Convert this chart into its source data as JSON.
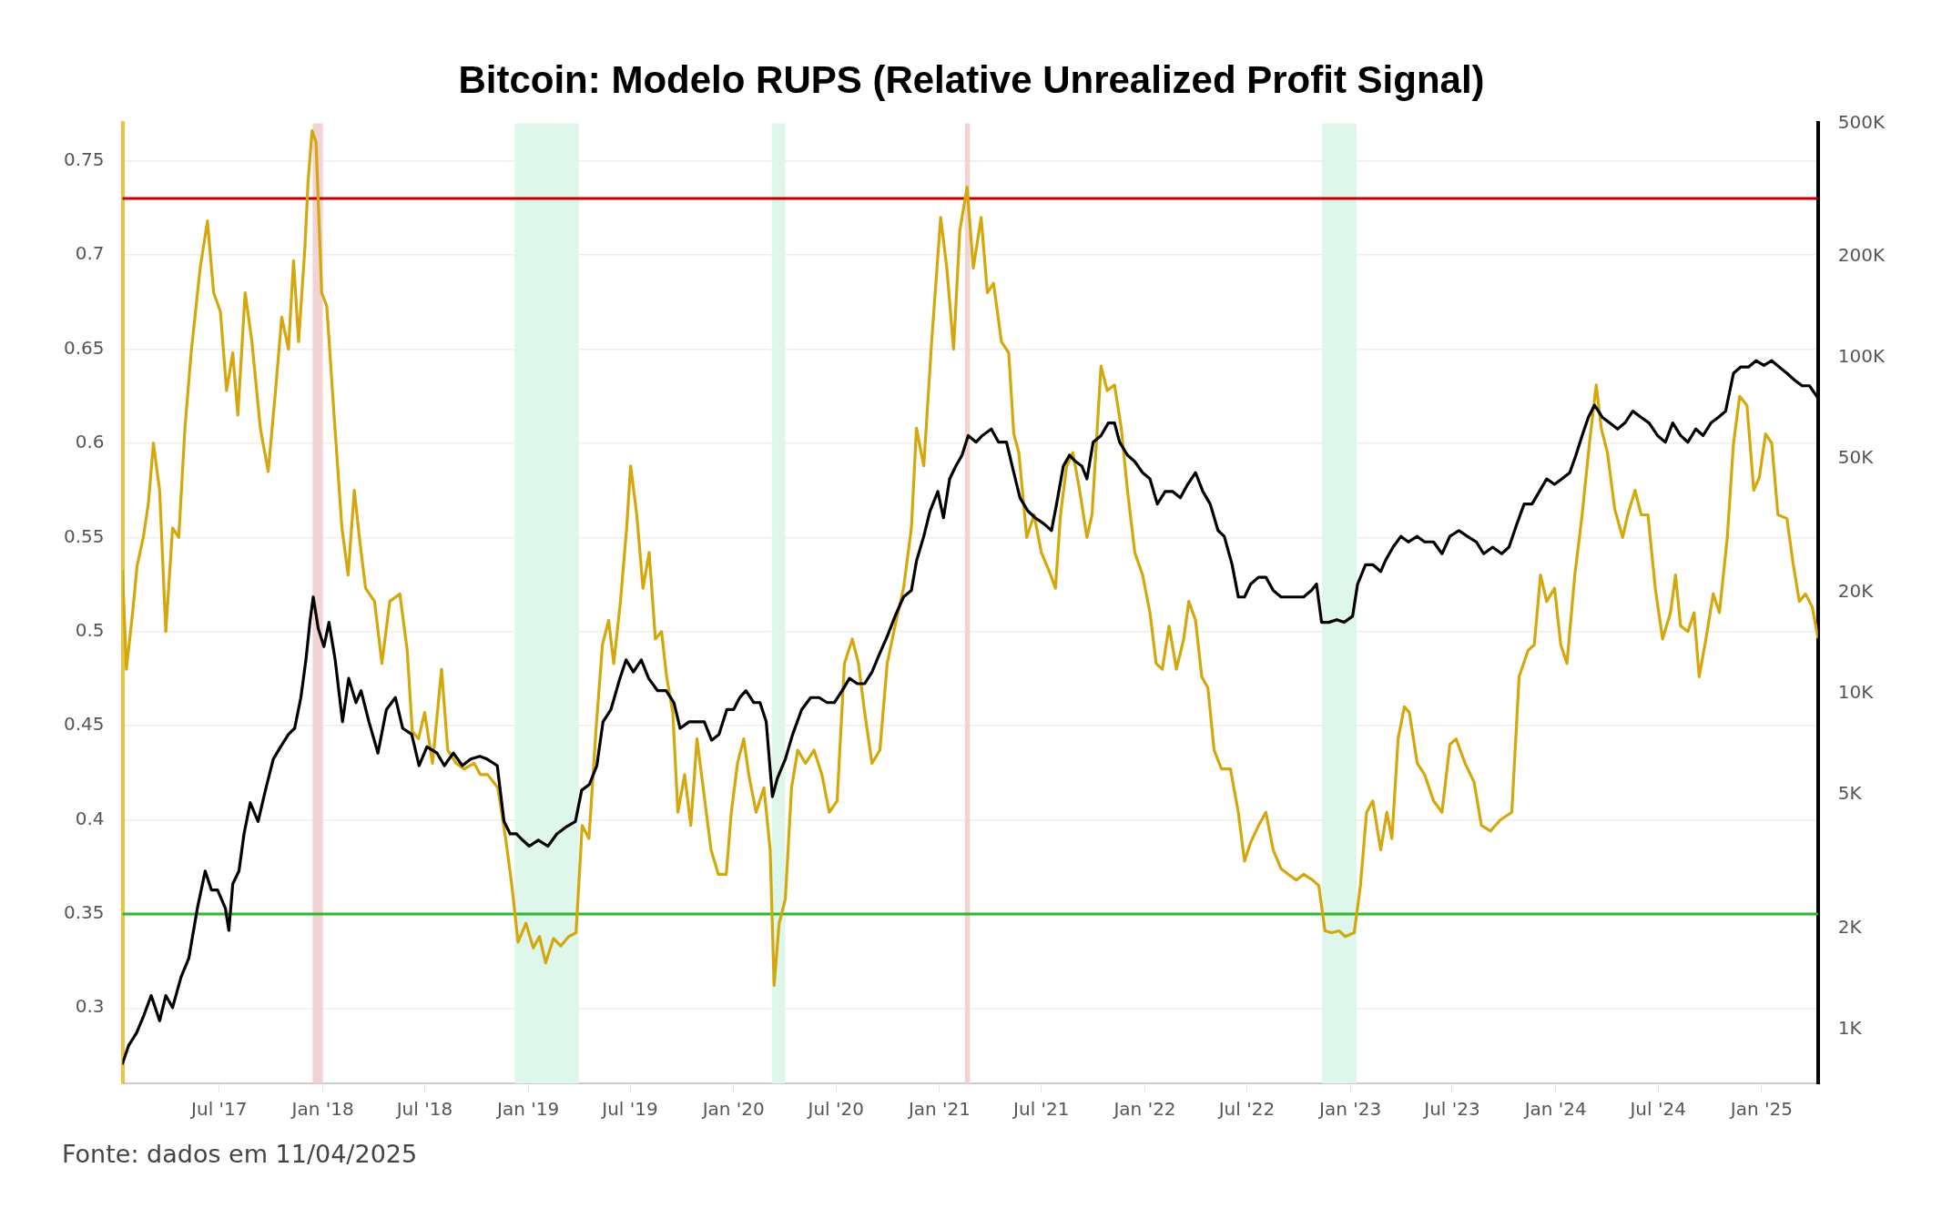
{
  "chart_data": {
    "type": "line",
    "title": "Bitcoin: Modelo RUPS (Relative Unrealized Profit Signal)",
    "annotations": [
      "Fonte: dados em 11/04/2025"
    ],
    "xlim": [
      "2017-01-10",
      "2025-04-11"
    ],
    "xticks": [
      {
        "value": "2017-07-01",
        "label": "Jul '17"
      },
      {
        "value": "2018-01-01",
        "label": "Jan '18"
      },
      {
        "value": "2018-07-01",
        "label": "Jul '18"
      },
      {
        "value": "2019-01-01",
        "label": "Jan '19"
      },
      {
        "value": "2019-07-01",
        "label": "Jul '19"
      },
      {
        "value": "2020-01-01",
        "label": "Jan '20"
      },
      {
        "value": "2020-07-01",
        "label": "Jul '20"
      },
      {
        "value": "2021-01-01",
        "label": "Jan '21"
      },
      {
        "value": "2021-07-01",
        "label": "Jul '21"
      },
      {
        "value": "2022-01-01",
        "label": "Jan '22"
      },
      {
        "value": "2022-07-01",
        "label": "Jul '22"
      },
      {
        "value": "2023-01-01",
        "label": "Jan '23"
      },
      {
        "value": "2023-07-01",
        "label": "Jul '23"
      },
      {
        "value": "2024-01-01",
        "label": "Jan '24"
      },
      {
        "value": "2024-07-01",
        "label": "Jul '24"
      },
      {
        "value": "2025-01-01",
        "label": "Jan '25"
      }
    ],
    "ylim": [
      0.26,
      0.77
    ],
    "yticks": [
      0.3,
      0.35,
      0.4,
      0.45,
      0.5,
      0.55,
      0.6,
      0.65,
      0.7,
      0.75
    ],
    "y2lim": [
      690,
      500000
    ],
    "y2ticks": [
      {
        "value": 1000,
        "label": "1K"
      },
      {
        "value": 2000,
        "label": "2K"
      },
      {
        "value": 5000,
        "label": "5K"
      },
      {
        "value": 10000,
        "label": "10K"
      },
      {
        "value": 20000,
        "label": "20K"
      },
      {
        "value": 50000,
        "label": "50K"
      },
      {
        "value": 100000,
        "label": "100K"
      },
      {
        "value": 200000,
        "label": "200K"
      },
      {
        "value": 500000,
        "label": "500K"
      }
    ],
    "log": "y2",
    "grid": "y",
    "legend": false,
    "marker": "none",
    "line_style": "solid",
    "ref_lines": [
      {
        "axis": "y",
        "value": 0.73,
        "color": "#c00000"
      },
      {
        "axis": "y",
        "value": 0.35,
        "color": "#2db82d"
      }
    ],
    "bands": [
      {
        "axis": "x",
        "from": "2017-12-14",
        "to": "2018-01-01",
        "color": "#f2d3d3"
      },
      {
        "axis": "x",
        "from": "2021-02-15",
        "to": "2021-02-24",
        "color": "#f2d3d3"
      },
      {
        "axis": "x",
        "from": "2018-12-08",
        "to": "2019-04-01",
        "color": "#dff6ea"
      },
      {
        "axis": "x",
        "from": "2020-03-09",
        "to": "2020-04-02",
        "color": "#dff6ea"
      },
      {
        "axis": "x",
        "from": "2022-11-12",
        "to": "2023-01-12",
        "color": "#dff6ea"
      }
    ],
    "series": [
      {
        "color": "#d4a80c",
        "x": [
          "2017-01-10",
          "2017-01-17",
          "2017-01-28",
          "2017-02-05",
          "2017-02-16",
          "2017-02-25",
          "2017-03-06",
          "2017-03-17",
          "2017-03-28",
          "2017-04-09",
          "2017-04-20",
          "2017-05-01",
          "2017-05-12",
          "2017-05-28",
          "2017-06-10",
          "2017-06-21",
          "2017-07-03",
          "2017-07-14",
          "2017-07-25",
          "2017-08-03",
          "2017-08-16",
          "2017-08-28",
          "2017-09-12",
          "2017-09-26",
          "2017-10-09",
          "2017-10-20",
          "2017-11-01",
          "2017-11-10",
          "2017-11-19",
          "2017-11-30",
          "2017-12-06",
          "2017-12-13",
          "2017-12-20",
          "2017-12-30",
          "2018-01-08",
          "2018-01-21",
          "2018-02-04",
          "2018-02-15",
          "2018-02-26",
          "2018-03-07",
          "2018-03-18",
          "2018-04-03",
          "2018-04-16",
          "2018-04-30",
          "2018-05-18",
          "2018-05-31",
          "2018-06-09",
          "2018-06-20",
          "2018-07-01",
          "2018-07-15",
          "2018-07-31",
          "2018-08-11",
          "2018-08-26",
          "2018-09-09",
          "2018-09-27",
          "2018-10-08",
          "2018-10-21",
          "2018-11-08",
          "2018-11-22",
          "2018-12-03",
          "2018-12-14",
          "2018-12-28",
          "2019-01-10",
          "2019-01-21",
          "2019-02-01",
          "2019-02-15",
          "2019-02-28",
          "2019-03-14",
          "2019-03-27",
          "2019-04-07",
          "2019-04-19",
          "2019-05-02",
          "2019-05-13",
          "2019-05-24",
          "2019-06-02",
          "2019-06-14",
          "2019-06-25",
          "2019-07-02",
          "2019-07-13",
          "2019-07-24",
          "2019-08-04",
          "2019-08-15",
          "2019-08-26",
          "2019-09-04",
          "2019-09-15",
          "2019-09-24",
          "2019-10-06",
          "2019-10-17",
          "2019-10-28",
          "2019-11-08",
          "2019-11-22",
          "2019-12-05",
          "2019-12-19",
          "2019-12-28",
          "2020-01-08",
          "2020-01-19",
          "2020-01-28",
          "2020-02-10",
          "2020-02-24",
          "2020-03-06",
          "2020-03-13",
          "2020-03-22",
          "2020-04-02",
          "2020-04-13",
          "2020-04-24",
          "2020-05-08",
          "2020-05-23",
          "2020-06-06",
          "2020-06-19",
          "2020-07-03",
          "2020-07-16",
          "2020-07-30",
          "2020-08-10",
          "2020-08-21",
          "2020-09-03",
          "2020-09-17",
          "2020-09-30",
          "2020-10-14",
          "2020-10-29",
          "2020-11-12",
          "2020-11-21",
          "2020-12-04",
          "2020-12-18",
          "2021-01-03",
          "2021-01-14",
          "2021-01-26",
          "2021-02-06",
          "2021-02-19",
          "2021-03-02",
          "2021-03-16",
          "2021-03-27",
          "2021-04-07",
          "2021-04-21",
          "2021-05-04",
          "2021-05-13",
          "2021-05-22",
          "2021-06-05",
          "2021-06-18",
          "2021-07-01",
          "2021-07-15",
          "2021-07-26",
          "2021-08-04",
          "2021-08-15",
          "2021-08-26",
          "2021-09-07",
          "2021-09-20",
          "2021-09-29",
          "2021-10-15",
          "2021-10-26",
          "2021-11-08",
          "2021-11-20",
          "2021-12-01",
          "2021-12-14",
          "2021-12-28",
          "2022-01-10",
          "2022-01-21",
          "2022-02-01",
          "2022-02-13",
          "2022-02-26",
          "2022-03-11",
          "2022-03-20",
          "2022-04-01",
          "2022-04-12",
          "2022-04-23",
          "2022-05-04",
          "2022-05-17",
          "2022-06-02",
          "2022-06-16",
          "2022-06-27",
          "2022-07-08",
          "2022-07-22",
          "2022-08-04",
          "2022-08-17",
          "2022-08-31",
          "2022-09-13",
          "2022-09-27",
          "2022-10-10",
          "2022-10-26",
          "2022-11-06",
          "2022-11-17",
          "2022-11-29",
          "2022-12-12",
          "2022-12-23",
          "2023-01-08",
          "2023-01-19",
          "2023-01-30",
          "2023-02-10",
          "2023-02-24",
          "2023-03-07",
          "2023-03-16",
          "2023-03-27",
          "2023-04-07",
          "2023-04-16",
          "2023-04-30",
          "2023-05-13",
          "2023-05-29",
          "2023-06-13",
          "2023-06-27",
          "2023-07-08",
          "2023-07-24",
          "2023-08-09",
          "2023-08-22",
          "2023-09-07",
          "2023-09-25",
          "2023-10-15",
          "2023-10-28",
          "2023-11-13",
          "2023-11-24",
          "2023-12-05",
          "2023-12-16",
          "2023-12-30",
          "2024-01-10",
          "2024-01-21",
          "2024-02-04",
          "2024-02-17",
          "2024-03-01",
          "2024-03-13",
          "2024-03-22",
          "2024-04-02",
          "2024-04-15",
          "2024-04-29",
          "2024-05-08",
          "2024-05-21",
          "2024-06-01",
          "2024-06-13",
          "2024-06-26",
          "2024-07-09",
          "2024-07-23",
          "2024-08-01",
          "2024-08-10",
          "2024-08-23",
          "2024-09-03",
          "2024-09-12",
          "2024-09-24",
          "2024-10-07",
          "2024-10-18",
          "2024-11-01",
          "2024-11-12",
          "2024-11-23",
          "2024-12-06",
          "2024-12-18",
          "2024-12-28",
          "2025-01-08",
          "2025-01-19",
          "2025-01-30",
          "2025-02-15",
          "2025-02-26",
          "2025-03-09",
          "2025-03-20",
          "2025-04-01",
          "2025-04-11"
        ],
        "values": [
          0.532,
          0.48,
          0.51,
          0.535,
          0.55,
          0.568,
          0.6,
          0.575,
          0.5,
          0.555,
          0.55,
          0.608,
          0.648,
          0.693,
          0.718,
          0.68,
          0.67,
          0.628,
          0.648,
          0.615,
          0.68,
          0.654,
          0.608,
          0.585,
          0.628,
          0.667,
          0.65,
          0.697,
          0.654,
          0.703,
          0.74,
          0.766,
          0.76,
          0.68,
          0.673,
          0.615,
          0.555,
          0.53,
          0.575,
          0.55,
          0.523,
          0.516,
          0.483,
          0.516,
          0.52,
          0.49,
          0.447,
          0.443,
          0.457,
          0.43,
          0.48,
          0.437,
          0.43,
          0.427,
          0.43,
          0.424,
          0.424,
          0.417,
          0.39,
          0.365,
          0.335,
          0.345,
          0.332,
          0.338,
          0.324,
          0.337,
          0.333,
          0.338,
          0.34,
          0.397,
          0.39,
          0.45,
          0.493,
          0.506,
          0.483,
          0.516,
          0.555,
          0.588,
          0.562,
          0.523,
          0.542,
          0.496,
          0.5,
          0.476,
          0.457,
          0.404,
          0.424,
          0.397,
          0.443,
          0.417,
          0.384,
          0.371,
          0.371,
          0.404,
          0.43,
          0.443,
          0.424,
          0.404,
          0.417,
          0.384,
          0.312,
          0.345,
          0.358,
          0.417,
          0.437,
          0.43,
          0.437,
          0.424,
          0.404,
          0.41,
          0.483,
          0.496,
          0.483,
          0.457,
          0.43,
          0.437,
          0.483,
          0.503,
          0.523,
          0.555,
          0.608,
          0.588,
          0.654,
          0.72,
          0.693,
          0.65,
          0.713,
          0.736,
          0.693,
          0.72,
          0.68,
          0.685,
          0.654,
          0.648,
          0.605,
          0.595,
          0.55,
          0.562,
          0.542,
          0.532,
          0.523,
          0.562,
          0.588,
          0.595,
          0.575,
          0.55,
          0.562,
          0.641,
          0.628,
          0.631,
          0.608,
          0.575,
          0.542,
          0.53,
          0.51,
          0.483,
          0.48,
          0.503,
          0.48,
          0.496,
          0.516,
          0.506,
          0.476,
          0.47,
          0.437,
          0.427,
          0.427,
          0.404,
          0.378,
          0.388,
          0.397,
          0.404,
          0.384,
          0.374,
          0.371,
          0.368,
          0.371,
          0.368,
          0.365,
          0.341,
          0.34,
          0.341,
          0.338,
          0.34,
          0.365,
          0.404,
          0.41,
          0.384,
          0.404,
          0.39,
          0.443,
          0.46,
          0.457,
          0.43,
          0.424,
          0.41,
          0.404,
          0.44,
          0.443,
          0.43,
          0.42,
          0.397,
          0.394,
          0.4,
          0.404,
          0.476,
          0.49,
          0.493,
          0.53,
          0.516,
          0.523,
          0.493,
          0.483,
          0.53,
          0.562,
          0.6,
          0.631,
          0.608,
          0.595,
          0.565,
          0.55,
          0.562,
          0.575,
          0.562,
          0.562,
          0.523,
          0.496,
          0.51,
          0.53,
          0.503,
          0.5,
          0.51,
          0.476,
          0.496,
          0.52,
          0.51,
          0.55,
          0.6,
          0.625,
          0.62,
          0.575,
          0.582,
          0.605,
          0.6,
          0.562,
          0.56,
          0.536,
          0.516,
          0.52,
          0.513,
          0.497
        ]
      },
      {
        "color": "#000000",
        "axis": "y2",
        "x": [
          "2017-01-10",
          "2017-01-21",
          "2017-02-04",
          "2017-02-17",
          "2017-03-02",
          "2017-03-17",
          "2017-03-28",
          "2017-04-09",
          "2017-04-24",
          "2017-05-08",
          "2017-05-23",
          "2017-06-06",
          "2017-06-17",
          "2017-06-28",
          "2017-07-12",
          "2017-07-18",
          "2017-07-25",
          "2017-08-05",
          "2017-08-14",
          "2017-08-25",
          "2017-09-08",
          "2017-09-21",
          "2017-10-05",
          "2017-10-18",
          "2017-11-01",
          "2017-11-12",
          "2017-11-23",
          "2017-12-02",
          "2017-12-09",
          "2017-12-15",
          "2017-12-24",
          "2018-01-03",
          "2018-01-12",
          "2018-01-23",
          "2018-02-05",
          "2018-02-16",
          "2018-03-01",
          "2018-03-10",
          "2018-03-24",
          "2018-04-09",
          "2018-04-24",
          "2018-05-10",
          "2018-05-23",
          "2018-06-08",
          "2018-06-21",
          "2018-07-05",
          "2018-07-23",
          "2018-08-05",
          "2018-08-21",
          "2018-09-06",
          "2018-09-21",
          "2018-10-07",
          "2018-10-20",
          "2018-11-07",
          "2018-11-19",
          "2018-11-30",
          "2018-12-11",
          "2018-12-22",
          "2019-01-03",
          "2019-01-19",
          "2019-02-05",
          "2019-02-21",
          "2019-03-08",
          "2019-03-26",
          "2019-04-06",
          "2019-04-20",
          "2019-05-03",
          "2019-05-14",
          "2019-05-28",
          "2019-06-13",
          "2019-06-24",
          "2019-07-07",
          "2019-07-21",
          "2019-08-03",
          "2019-08-19",
          "2019-09-03",
          "2019-09-17",
          "2019-09-28",
          "2019-10-14",
          "2019-10-27",
          "2019-11-10",
          "2019-11-23",
          "2019-12-06",
          "2019-12-20",
          "2020-01-01",
          "2020-01-12",
          "2020-01-23",
          "2020-02-06",
          "2020-02-17",
          "2020-02-28",
          "2020-03-10",
          "2020-03-19",
          "2020-04-02",
          "2020-04-15",
          "2020-05-01",
          "2020-05-17",
          "2020-06-01",
          "2020-06-15",
          "2020-06-28",
          "2020-07-12",
          "2020-07-25",
          "2020-08-08",
          "2020-08-21",
          "2020-09-03",
          "2020-09-17",
          "2020-09-30",
          "2020-10-14",
          "2020-10-29",
          "2020-11-12",
          "2020-11-21",
          "2020-12-04",
          "2020-12-15",
          "2020-12-29",
          "2021-01-08",
          "2021-01-19",
          "2021-01-30",
          "2021-02-10",
          "2021-02-21",
          "2021-03-07",
          "2021-03-18",
          "2021-04-03",
          "2021-04-16",
          "2021-04-30",
          "2021-05-13",
          "2021-05-24",
          "2021-06-07",
          "2021-06-20",
          "2021-07-06",
          "2021-07-19",
          "2021-07-28",
          "2021-08-09",
          "2021-08-20",
          "2021-08-31",
          "2021-09-11",
          "2021-09-20",
          "2021-10-01",
          "2021-10-15",
          "2021-10-28",
          "2021-11-08",
          "2021-11-17",
          "2021-12-01",
          "2021-12-14",
          "2021-12-28",
          "2022-01-10",
          "2022-01-23",
          "2022-02-06",
          "2022-02-19",
          "2022-03-05",
          "2022-03-18",
          "2022-04-01",
          "2022-04-14",
          "2022-04-27",
          "2022-05-11",
          "2022-05-22",
          "2022-06-05",
          "2022-06-16",
          "2022-06-27",
          "2022-07-08",
          "2022-07-22",
          "2022-08-04",
          "2022-08-17",
          "2022-08-31",
          "2022-09-13",
          "2022-09-27",
          "2022-10-10",
          "2022-10-24",
          "2022-11-02",
          "2022-11-11",
          "2022-11-24",
          "2022-12-08",
          "2022-12-21",
          "2023-01-05",
          "2023-01-14",
          "2023-01-28",
          "2023-02-10",
          "2023-02-24",
          "2023-03-05",
          "2023-03-18",
          "2023-04-01",
          "2023-04-14",
          "2023-04-30",
          "2023-05-13",
          "2023-05-29",
          "2023-06-13",
          "2023-06-27",
          "2023-07-13",
          "2023-07-28",
          "2023-08-13",
          "2023-08-26",
          "2023-09-11",
          "2023-09-27",
          "2023-10-10",
          "2023-10-24",
          "2023-11-06",
          "2023-11-20",
          "2023-12-03",
          "2023-12-16",
          "2023-12-30",
          "2024-01-12",
          "2024-01-26",
          "2024-02-06",
          "2024-02-17",
          "2024-02-28",
          "2024-03-10",
          "2024-03-24",
          "2024-04-06",
          "2024-04-20",
          "2024-05-03",
          "2024-05-17",
          "2024-06-01",
          "2024-06-15",
          "2024-06-30",
          "2024-07-14",
          "2024-07-27",
          "2024-08-10",
          "2024-08-23",
          "2024-09-06",
          "2024-09-19",
          "2024-10-03",
          "2024-10-16",
          "2024-10-29",
          "2024-11-12",
          "2024-11-25",
          "2024-12-09",
          "2024-12-22",
          "2025-01-05",
          "2025-01-19",
          "2025-02-01",
          "2025-02-15",
          "2025-02-28",
          "2025-03-14",
          "2025-03-27",
          "2025-04-11"
        ],
        "values": [
          790,
          895,
          975,
          1100,
          1260,
          1060,
          1260,
          1160,
          1430,
          1630,
          2290,
          2960,
          2600,
          2600,
          2290,
          1970,
          2710,
          2960,
          3820,
          4730,
          4160,
          5150,
          6380,
          6940,
          7560,
          7880,
          9730,
          12600,
          16300,
          19400,
          15600,
          13800,
          16300,
          12600,
          8240,
          11100,
          9400,
          10200,
          8240,
          6650,
          8960,
          9730,
          7880,
          7560,
          6100,
          6940,
          6650,
          6100,
          6650,
          6100,
          6380,
          6500,
          6380,
          6100,
          4160,
          3820,
          3820,
          3660,
          3510,
          3660,
          3510,
          3820,
          3990,
          4160,
          5150,
          5370,
          6100,
          8240,
          8960,
          11100,
          12600,
          11600,
          12600,
          11100,
          10200,
          10200,
          9400,
          7880,
          8240,
          8240,
          8240,
          7260,
          7560,
          8960,
          8960,
          9730,
          10200,
          9400,
          9400,
          8240,
          4930,
          5600,
          6380,
          7560,
          8960,
          9730,
          9730,
          9400,
          9400,
          10200,
          11100,
          10700,
          10700,
          11600,
          13200,
          14800,
          17000,
          19400,
          20300,
          24800,
          29400,
          34900,
          40000,
          33400,
          43600,
          47600,
          51300,
          58700,
          56100,
          58700,
          61400,
          56100,
          56100,
          45500,
          38300,
          35000,
          33400,
          32000,
          30600,
          36700,
          47600,
          51300,
          49100,
          47600,
          43600,
          56100,
          58700,
          64000,
          64000,
          56100,
          51300,
          49100,
          45500,
          43600,
          36700,
          40000,
          40000,
          38300,
          42000,
          45500,
          40000,
          36700,
          30600,
          29400,
          24200,
          19400,
          19400,
          21200,
          22200,
          22200,
          20300,
          19400,
          19400,
          19400,
          19400,
          20300,
          21200,
          16300,
          16300,
          16600,
          16300,
          17000,
          21200,
          24200,
          24200,
          23100,
          25000,
          27300,
          29400,
          28300,
          29400,
          28300,
          28300,
          26100,
          29400,
          30600,
          29400,
          28300,
          26100,
          27300,
          26100,
          27300,
          32000,
          36700,
          36700,
          40000,
          43600,
          42000,
          43600,
          45500,
          51300,
          58700,
          66500,
          72300,
          66500,
          64000,
          61400,
          64000,
          69400,
          66500,
          64000,
          58700,
          56100,
          64000,
          58700,
          56100,
          61400,
          58700,
          64000,
          66500,
          69400,
          90000,
          94000,
          94000,
          98100,
          95000,
          98100,
          94000,
          90000,
          86000,
          82600,
          82600,
          76000
        ]
      }
    ]
  }
}
